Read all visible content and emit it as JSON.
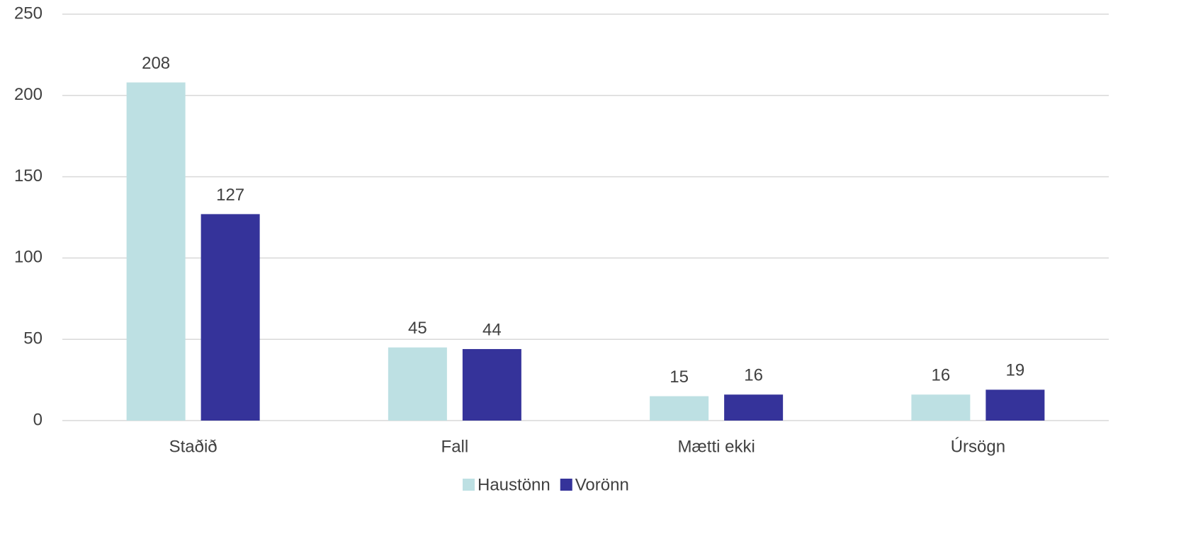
{
  "chart_data": {
    "type": "bar",
    "categories": [
      "Staðið",
      "Fall",
      "Mætti ekki",
      "Úrsögn"
    ],
    "series": [
      {
        "name": "Haustönn",
        "color": "#bde0e3",
        "values": [
          208,
          45,
          15,
          16
        ]
      },
      {
        "name": "Vorönn",
        "color": "#35339a",
        "values": [
          127,
          44,
          16,
          19
        ]
      }
    ],
    "ylim": [
      0,
      250
    ],
    "yticks": [
      0,
      50,
      100,
      150,
      200,
      250
    ],
    "grid": true,
    "legend": "bottom"
  }
}
